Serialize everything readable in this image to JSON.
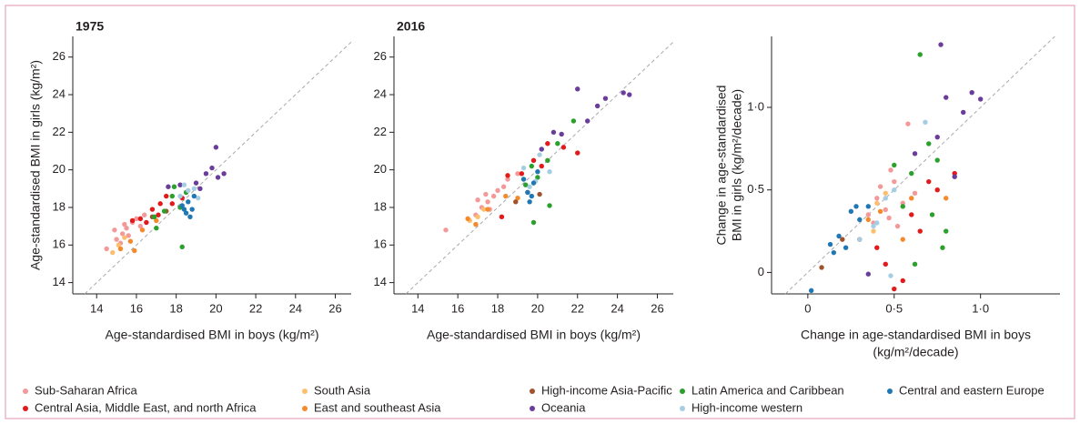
{
  "chart_data": [
    {
      "type": "scatter",
      "title": "1975",
      "xlabel": [
        "Age-standardised BMI in boys (kg/m²)"
      ],
      "ylabel": [
        "Age-standardised BMI in girls (kg/m²)"
      ],
      "xlim": [
        12.8,
        26.8
      ],
      "ylim": [
        13.4,
        27.1
      ],
      "xticks": [
        14,
        16,
        18,
        20,
        22,
        24,
        26
      ],
      "yticks": [
        14,
        16,
        18,
        20,
        22,
        24,
        26
      ],
      "identity_line": true,
      "series": [
        {
          "name": "Sub-Saharan Africa",
          "color": "#f4999a",
          "x": [
            14.5,
            15,
            15.3,
            15.5,
            15.8,
            16,
            15.2,
            15.6,
            16.2,
            14.9,
            15.4,
            16.4
          ],
          "y": [
            15.8,
            16.3,
            16.6,
            16.9,
            17.2,
            17.4,
            16.1,
            16.5,
            17,
            16.8,
            17.1,
            17.6
          ]
        },
        {
          "name": "Central Asia, Middle East, and north Africa",
          "color": "#e31a1c",
          "x": [
            16.2,
            16.8,
            17.2,
            17.5,
            17.8,
            16.5,
            17.1,
            18.3,
            15.8
          ],
          "y": [
            17.4,
            17.9,
            18.2,
            18.6,
            18.2,
            17.2,
            17.6,
            18.5,
            17.3
          ]
        },
        {
          "name": "South Asia",
          "color": "#fdbf6f",
          "x": [
            14.8,
            15.1,
            15.4
          ],
          "y": [
            15.6,
            16,
            16.4
          ]
        },
        {
          "name": "East and southeast Asia",
          "color": "#f58a2c",
          "x": [
            15.2,
            15.7,
            15.9,
            16.3,
            17
          ],
          "y": [
            15.8,
            16.2,
            15.7,
            16.8,
            17.3
          ]
        },
        {
          "name": "High-income Asia-Pacific",
          "color": "#a0522d",
          "x": [
            16.8,
            17.5
          ],
          "y": [
            17.5,
            17.8
          ]
        },
        {
          "name": "Oceania",
          "color": "#6a3d9a",
          "x": [
            17.6,
            18.2,
            19,
            19.5,
            20,
            19.8,
            20.4,
            20.1,
            19.2
          ],
          "y": [
            19.1,
            19.2,
            19.3,
            19.8,
            21.2,
            20.1,
            19.8,
            19.6,
            19
          ]
        },
        {
          "name": "Latin America and Caribbean",
          "color": "#2ca02c",
          "x": [
            17,
            17.4,
            17.8,
            18.2,
            18.5,
            16.9,
            18.3,
            17.9
          ],
          "y": [
            16.9,
            17.8,
            18.6,
            18,
            18.8,
            17.5,
            15.9,
            19.1
          ]
        },
        {
          "name": "High-income western",
          "color": "#a6cee3",
          "x": [
            18.2,
            18.6,
            18.9,
            19.1,
            18.4
          ],
          "y": [
            18.6,
            18.9,
            19,
            18.5,
            19.2
          ]
        },
        {
          "name": "Central and eastern Europe",
          "color": "#1f78b4",
          "x": [
            18.3,
            18.5,
            18.7,
            18.6,
            18.8,
            18.4,
            18.9
          ],
          "y": [
            18.1,
            17.7,
            17.5,
            18.3,
            17.9,
            17.9,
            18.6
          ]
        }
      ]
    },
    {
      "type": "scatter",
      "title": "2016",
      "xlabel": [
        "Age-standardised BMI in boys (kg/m²)"
      ],
      "xlim": [
        12.8,
        26.8
      ],
      "ylim": [
        13.4,
        27.1
      ],
      "xticks": [
        14,
        16,
        18,
        20,
        22,
        24,
        26
      ],
      "yticks": [
        14,
        16,
        18,
        20,
        22,
        24,
        26
      ],
      "identity_line": true,
      "series": [
        {
          "name": "Sub-Saharan Africa",
          "color": "#f4999a",
          "x": [
            15.4,
            16.9,
            17.2,
            17.5,
            17.8,
            18,
            17.4,
            18.3,
            18.5,
            17.6,
            17,
            19
          ],
          "y": [
            16.8,
            17.6,
            18,
            18.3,
            18.6,
            18.9,
            18.7,
            19.1,
            19.5,
            17.9,
            18.4,
            19.8
          ]
        },
        {
          "name": "Central Asia, Middle East, and north Africa",
          "color": "#e31a1c",
          "x": [
            18.5,
            19.2,
            19.8,
            20.5,
            21.3,
            22,
            20.2,
            18.2,
            19.5
          ],
          "y": [
            19.7,
            19.8,
            20.5,
            21.4,
            21.2,
            20.9,
            20.2,
            17.5,
            18.8
          ]
        },
        {
          "name": "South Asia",
          "color": "#fdbf6f",
          "x": [
            16.6,
            17,
            17.3
          ],
          "y": [
            17.3,
            17.5,
            17.9
          ]
        },
        {
          "name": "East and southeast Asia",
          "color": "#f58a2c",
          "x": [
            16.5,
            16.9,
            17.5,
            18.4,
            19
          ],
          "y": [
            17.4,
            17.1,
            17.9,
            18.6,
            18.5
          ]
        },
        {
          "name": "High-income Asia-Pacific",
          "color": "#a0522d",
          "x": [
            18.9,
            20.1
          ],
          "y": [
            18.3,
            18.7
          ]
        },
        {
          "name": "Oceania",
          "color": "#6a3d9a",
          "x": [
            20.2,
            21.2,
            22,
            23,
            23.4,
            24.3,
            24.6,
            22.5,
            20.8
          ],
          "y": [
            21.1,
            21.9,
            24.3,
            23.4,
            23.8,
            24.1,
            24,
            22.6,
            22
          ]
        },
        {
          "name": "Latin America and Caribbean",
          "color": "#2ca02c",
          "x": [
            19.4,
            20,
            20.5,
            21,
            21.8,
            19.8,
            20.6,
            19.7
          ],
          "y": [
            19.2,
            19.6,
            20.5,
            21.4,
            22.6,
            17.2,
            18.1,
            20.2
          ]
        },
        {
          "name": "High-income western",
          "color": "#a6cee3",
          "x": [
            19.3,
            19.9,
            20.6,
            20.1,
            19.6
          ],
          "y": [
            20.1,
            19.4,
            19.9,
            20.8,
            19.1
          ]
        },
        {
          "name": "Central and eastern Europe",
          "color": "#1f78b4",
          "x": [
            19.5,
            19.8,
            19.6,
            20,
            19.3,
            19.7
          ],
          "y": [
            18.8,
            19.3,
            18.3,
            19.9,
            19.5,
            18.6
          ]
        }
      ]
    },
    {
      "type": "scatter",
      "xlabel": [
        "Change in age-standardised BMI in boys",
        "(kg/m²/decade)"
      ],
      "ylabel": [
        "Change in age-standardised",
        "BMI in girls (kg/m²/decade)"
      ],
      "xlim": [
        -0.21,
        1.46
      ],
      "ylim": [
        -0.13,
        1.43
      ],
      "xticks": [
        0,
        {
          "value": 0.5,
          "label": "0·5"
        },
        {
          "value": 1,
          "label": "1·0"
        }
      ],
      "yticks": [
        0,
        {
          "value": 0.5,
          "label": "0·5"
        },
        {
          "value": 1,
          "label": "1·0"
        }
      ],
      "identity_line": true,
      "series": [
        {
          "name": "Sub-Saharan Africa",
          "color": "#f4999a",
          "x": [
            0.4,
            0.45,
            0.5,
            0.55,
            0.38,
            0.62,
            0.48,
            0.42,
            0.58,
            0.35,
            0.52,
            0.47
          ],
          "y": [
            0.45,
            0.38,
            0.55,
            0.42,
            0.3,
            0.48,
            0.62,
            0.52,
            0.9,
            0.35,
            0.28,
            0.33
          ]
        },
        {
          "name": "Central Asia, Middle East, and north Africa",
          "color": "#e31a1c",
          "x": [
            0.3,
            0.45,
            0.5,
            0.6,
            0.7,
            0.75,
            0.85,
            0.4,
            0.55,
            0.65
          ],
          "y": [
            0.2,
            0.05,
            -0.1,
            0.35,
            0.55,
            0.5,
            0.6,
            0.15,
            -0.05,
            0.25
          ]
        },
        {
          "name": "South Asia",
          "color": "#fdbf6f",
          "x": [
            0.4,
            0.45,
            0.38
          ],
          "y": [
            0.42,
            0.48,
            0.25
          ]
        },
        {
          "name": "East and southeast Asia",
          "color": "#f58a2c",
          "x": [
            0.42,
            0.55,
            0.6,
            0.35,
            0.8
          ],
          "y": [
            0.37,
            0.2,
            0.45,
            0.32,
            0.45
          ]
        },
        {
          "name": "High-income Asia-Pacific",
          "color": "#a0522d",
          "x": [
            0.08,
            0.2
          ],
          "y": [
            0.03,
            0.2
          ]
        },
        {
          "name": "Oceania",
          "color": "#6a3d9a",
          "x": [
            0.35,
            0.62,
            0.75,
            0.8,
            0.9,
            0.95,
            1.0,
            0.77,
            0.85
          ],
          "y": [
            -0.01,
            0.72,
            0.82,
            1.06,
            0.97,
            1.09,
            1.05,
            1.38,
            0.58
          ]
        },
        {
          "name": "Latin America and Caribbean",
          "color": "#2ca02c",
          "x": [
            0.5,
            0.6,
            0.65,
            0.7,
            0.75,
            0.62,
            0.72,
            0.8,
            0.78,
            0.55
          ],
          "y": [
            0.65,
            0.6,
            1.32,
            0.78,
            0.68,
            0.05,
            0.35,
            0.25,
            0.15,
            0.4
          ]
        },
        {
          "name": "High-income western",
          "color": "#a6cee3",
          "x": [
            0.3,
            0.38,
            0.45,
            0.5,
            0.68,
            0.48,
            0.4
          ],
          "y": [
            0.2,
            0.28,
            0.45,
            0.5,
            0.91,
            -0.02,
            0.3
          ]
        },
        {
          "name": "Central and eastern Europe",
          "color": "#1f78b4",
          "x": [
            0.02,
            0.13,
            0.18,
            0.25,
            0.3,
            0.28,
            0.35,
            0.22,
            0.15
          ],
          "y": [
            -0.11,
            0.17,
            0.22,
            0.37,
            0.32,
            0.4,
            0.4,
            0.15,
            0.12
          ]
        }
      ]
    }
  ]
}
